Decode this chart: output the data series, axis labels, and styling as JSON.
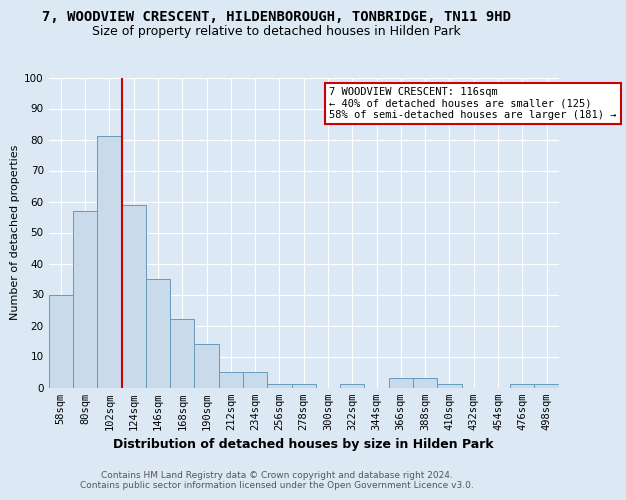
{
  "title": "7, WOODVIEW CRESCENT, HILDENBOROUGH, TONBRIDGE, TN11 9HD",
  "subtitle": "Size of property relative to detached houses in Hilden Park",
  "xlabel": "Distribution of detached houses by size in Hilden Park",
  "ylabel": "Number of detached properties",
  "footer_line1": "Contains HM Land Registry data © Crown copyright and database right 2024.",
  "footer_line2": "Contains public sector information licensed under the Open Government Licence v3.0.",
  "categories": [
    "58sqm",
    "80sqm",
    "102sqm",
    "124sqm",
    "146sqm",
    "168sqm",
    "190sqm",
    "212sqm",
    "234sqm",
    "256sqm",
    "278sqm",
    "300sqm",
    "322sqm",
    "344sqm",
    "366sqm",
    "388sqm",
    "410sqm",
    "432sqm",
    "454sqm",
    "476sqm",
    "498sqm"
  ],
  "values": [
    30,
    57,
    81,
    59,
    35,
    22,
    14,
    5,
    5,
    1,
    1,
    0,
    1,
    0,
    3,
    3,
    1,
    0,
    0,
    1,
    1
  ],
  "bar_color": "#c9daea",
  "bar_edge_color": "#6699bb",
  "background_color": "#dce9f5",
  "grid_color": "#ffffff",
  "red_line_x": 2.5,
  "annotation_text": "7 WOODVIEW CRESCENT: 116sqm\n← 40% of detached houses are smaller (125)\n58% of semi-detached houses are larger (181) →",
  "annotation_box_color": "#ffffff",
  "annotation_box_edge": "#cc0000",
  "red_line_color": "#cc0000",
  "ylim": [
    0,
    100
  ],
  "title_fontsize": 10,
  "subtitle_fontsize": 9,
  "ylabel_fontsize": 8,
  "xlabel_fontsize": 9,
  "tick_fontsize": 7.5,
  "annotation_fontsize": 7.5,
  "footer_fontsize": 6.5
}
